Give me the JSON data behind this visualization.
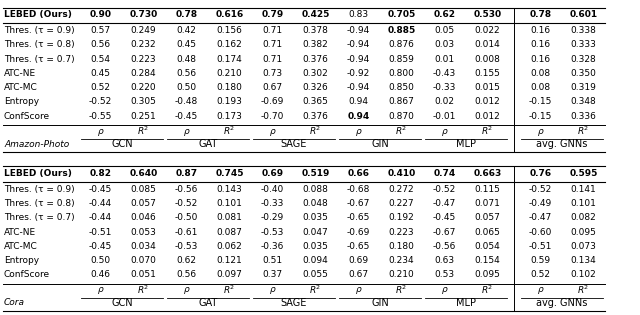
{
  "cora_header": "Cora",
  "amazon_header": "Amazon-Photo",
  "col_groups": [
    "GCN",
    "GAT",
    "SAGE",
    "GIN",
    "MLP",
    "avg. GNNs"
  ],
  "sub_headers": [
    "ρ",
    "R²"
  ],
  "row_labels": [
    "ConfScore",
    "Entropy",
    "ATC-MC",
    "ATC-NE",
    "Thres. (τ = 0.7)",
    "Thres. (τ = 0.8)",
    "Thres. (τ = 0.9)",
    "LEBED (Ours)"
  ],
  "cora_data": [
    [
      "0.46",
      "0.051",
      "0.56",
      "0.097",
      "0.37",
      "0.055",
      "0.67",
      "0.210",
      "0.53",
      "0.095",
      "0.52",
      "0.102"
    ],
    [
      "0.50",
      "0.070",
      "0.62",
      "0.121",
      "0.51",
      "0.094",
      "0.69",
      "0.234",
      "0.63",
      "0.154",
      "0.59",
      "0.134"
    ],
    [
      "-0.45",
      "0.034",
      "-0.53",
      "0.062",
      "-0.36",
      "0.035",
      "-0.65",
      "0.180",
      "-0.56",
      "0.054",
      "-0.51",
      "0.073"
    ],
    [
      "-0.51",
      "0.053",
      "-0.61",
      "0.087",
      "-0.53",
      "0.047",
      "-0.69",
      "0.223",
      "-0.67",
      "0.065",
      "-0.60",
      "0.095"
    ],
    [
      "-0.44",
      "0.046",
      "-0.50",
      "0.081",
      "-0.29",
      "0.035",
      "-0.65",
      "0.192",
      "-0.45",
      "0.057",
      "-0.47",
      "0.082"
    ],
    [
      "-0.44",
      "0.057",
      "-0.52",
      "0.101",
      "-0.33",
      "0.048",
      "-0.67",
      "0.227",
      "-0.47",
      "0.071",
      "-0.49",
      "0.101"
    ],
    [
      "-0.45",
      "0.085",
      "-0.56",
      "0.143",
      "-0.40",
      "0.088",
      "-0.68",
      "0.272",
      "-0.52",
      "0.115",
      "-0.52",
      "0.141"
    ],
    [
      "0.82",
      "0.640",
      "0.87",
      "0.745",
      "0.69",
      "0.519",
      "0.66",
      "0.410",
      "0.74",
      "0.663",
      "0.76",
      "0.595"
    ]
  ],
  "amazon_data": [
    [
      "-0.55",
      "0.251",
      "-0.45",
      "0.173",
      "-0.70",
      "0.376",
      "0.94",
      "0.870",
      "-0.01",
      "0.012",
      "-0.15",
      "0.336"
    ],
    [
      "-0.52",
      "0.305",
      "-0.48",
      "0.193",
      "-0.69",
      "0.365",
      "0.94",
      "0.867",
      "0.02",
      "0.012",
      "-0.15",
      "0.348"
    ],
    [
      "0.52",
      "0.220",
      "0.50",
      "0.180",
      "0.67",
      "0.326",
      "-0.94",
      "0.850",
      "-0.33",
      "0.015",
      "0.08",
      "0.319"
    ],
    [
      "0.45",
      "0.284",
      "0.56",
      "0.210",
      "0.73",
      "0.302",
      "-0.92",
      "0.800",
      "-0.43",
      "0.155",
      "0.08",
      "0.350"
    ],
    [
      "0.54",
      "0.223",
      "0.48",
      "0.174",
      "0.71",
      "0.376",
      "-0.94",
      "0.859",
      "0.01",
      "0.008",
      "0.16",
      "0.328"
    ],
    [
      "0.56",
      "0.232",
      "0.45",
      "0.162",
      "0.71",
      "0.382",
      "-0.94",
      "0.876",
      "0.03",
      "0.014",
      "0.16",
      "0.333"
    ],
    [
      "0.57",
      "0.249",
      "0.42",
      "0.156",
      "0.71",
      "0.378",
      "-0.94",
      "0.885",
      "0.05",
      "0.022",
      "0.16",
      "0.338"
    ],
    [
      "0.90",
      "0.730",
      "0.78",
      "0.616",
      "0.79",
      "0.425",
      "0.83",
      "0.705",
      "0.62",
      "0.530",
      "0.78",
      "0.601"
    ]
  ],
  "cora_bold": [
    [
      false,
      false,
      false,
      false,
      false,
      false,
      false,
      false,
      false,
      false,
      false,
      false
    ],
    [
      false,
      false,
      false,
      false,
      false,
      false,
      false,
      false,
      false,
      false,
      false,
      false
    ],
    [
      false,
      false,
      false,
      false,
      false,
      false,
      false,
      false,
      false,
      false,
      false,
      false
    ],
    [
      false,
      false,
      false,
      false,
      false,
      false,
      false,
      false,
      false,
      false,
      false,
      false
    ],
    [
      false,
      false,
      false,
      false,
      false,
      false,
      false,
      false,
      false,
      false,
      false,
      false
    ],
    [
      false,
      false,
      false,
      false,
      false,
      false,
      false,
      false,
      false,
      false,
      false,
      false
    ],
    [
      false,
      false,
      false,
      false,
      false,
      false,
      false,
      false,
      false,
      false,
      false,
      false
    ],
    [
      true,
      true,
      true,
      true,
      true,
      true,
      true,
      true,
      true,
      true,
      true,
      true
    ]
  ],
  "amazon_bold": [
    [
      false,
      false,
      false,
      false,
      false,
      false,
      true,
      false,
      false,
      false,
      false,
      false
    ],
    [
      false,
      false,
      false,
      false,
      false,
      false,
      false,
      false,
      false,
      false,
      false,
      false
    ],
    [
      false,
      false,
      false,
      false,
      false,
      false,
      false,
      false,
      false,
      false,
      false,
      false
    ],
    [
      false,
      false,
      false,
      false,
      false,
      false,
      false,
      false,
      false,
      false,
      false,
      false
    ],
    [
      false,
      false,
      false,
      false,
      false,
      false,
      false,
      false,
      false,
      false,
      false,
      false
    ],
    [
      false,
      false,
      false,
      false,
      false,
      false,
      false,
      false,
      false,
      false,
      false,
      false
    ],
    [
      false,
      false,
      false,
      false,
      false,
      false,
      false,
      true,
      false,
      false,
      false,
      false
    ],
    [
      true,
      true,
      true,
      true,
      true,
      true,
      false,
      true,
      true,
      true,
      true,
      true
    ]
  ],
  "bg_color": "#ffffff",
  "header_color": "#000000",
  "text_color": "#000000",
  "lebed_bg": "#e8e8e8",
  "line_color": "#000000",
  "font_size": 6.5,
  "header_font_size": 7.0
}
